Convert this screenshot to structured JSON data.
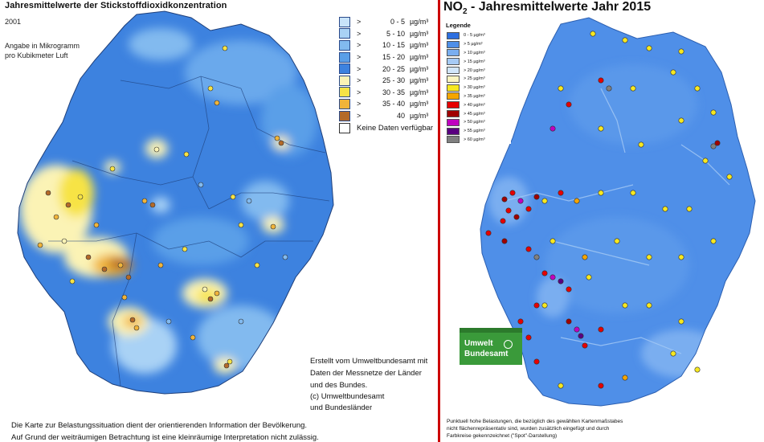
{
  "left_map": {
    "title": "Jahresmittelwerte der Stickstoffdioxidkonzentration",
    "year": "2001",
    "unit_note_line1": "Angabe in Mikrogramm",
    "unit_note_line2": "pro Kubikmeter Luft",
    "legend": [
      {
        "op": ">",
        "range": "0 -  5",
        "unit": "µg/m³",
        "color": "#c9e4fa"
      },
      {
        "op": ">",
        "range": "5 - 10",
        "unit": "µg/m³",
        "color": "#a9d2f5"
      },
      {
        "op": ">",
        "range": "10 - 15",
        "unit": "µg/m³",
        "color": "#82baef"
      },
      {
        "op": ">",
        "range": "15 - 20",
        "unit": "µg/m³",
        "color": "#5a9fe8"
      },
      {
        "op": ">",
        "range": "20 - 25",
        "unit": "µg/m³",
        "color": "#3d82df"
      },
      {
        "op": ">",
        "range": "25 - 30",
        "unit": "µg/m³",
        "color": "#fbf3b5"
      },
      {
        "op": ">",
        "range": "30 - 35",
        "unit": "µg/m³",
        "color": "#f7e345"
      },
      {
        "op": ">",
        "range": "35 - 40",
        "unit": "µg/m³",
        "color": "#f0b43a"
      },
      {
        "op": ">",
        "range": "40",
        "unit": "µg/m³",
        "color": "#b46a28"
      }
    ],
    "no_data_label": "Keine Daten verfügbar",
    "credit_lines": [
      "Erstellt vom Umweltbundesamt mit",
      "Daten der Messnetze der Länder",
      "und des Bundes.",
      "(c) Umweltbundesamt",
      "und Bundesländer"
    ],
    "footnote_lines": [
      "Die Karte zur Belastungssituation dient der orientierenden Information der Bevölkerung.",
      "Auf Grund der weiträumigen Betrachtung ist eine kleinräumige Interpretation nicht zulässig."
    ]
  },
  "right_map": {
    "title_prefix": "NO",
    "title_sub": "2",
    "title_rest": " - Jahresmittelwerte  Jahr 2015",
    "legend_title": "Legende",
    "legend": [
      {
        "label": "0 - 5 µg/m³",
        "color": "#2e6fe0"
      },
      {
        "label": ">   5 µg/m³",
        "color": "#4f8fe8"
      },
      {
        "label": "> 10 µg/m³",
        "color": "#7aaef0"
      },
      {
        "label": "> 15 µg/m³",
        "color": "#a6caf5"
      },
      {
        "label": "> 20 µg/m³",
        "color": "#d2e6fa"
      },
      {
        "label": "> 25 µg/m³",
        "color": "#fbf4c0"
      },
      {
        "label": "> 30 µg/m³",
        "color": "#f7e820"
      },
      {
        "label": "> 35 µg/m³",
        "color": "#f5a500"
      },
      {
        "label": "> 40 µg/m³",
        "color": "#e60000"
      },
      {
        "label": "> 45 µg/m³",
        "color": "#a00000"
      },
      {
        "label": "> 50 µg/m³",
        "color": "#c000c0"
      },
      {
        "label": "> 55 µg/m³",
        "color": "#5a0080"
      },
      {
        "label": "> 60 µg/m³",
        "color": "#808080"
      }
    ],
    "logo_line1": "Umwelt",
    "logo_line2": "Bundesamt",
    "footnote_lines": [
      "Punktuell hohe Belastungen, die bezüglich des gewählten Kartenmaßstabes",
      "nicht flächenrepräsentativ sind, wurden zusätzlich eingefügt und durch",
      "Farbkreise gekennzeichnet (\"Spot\"-Darstellung)"
    ]
  }
}
